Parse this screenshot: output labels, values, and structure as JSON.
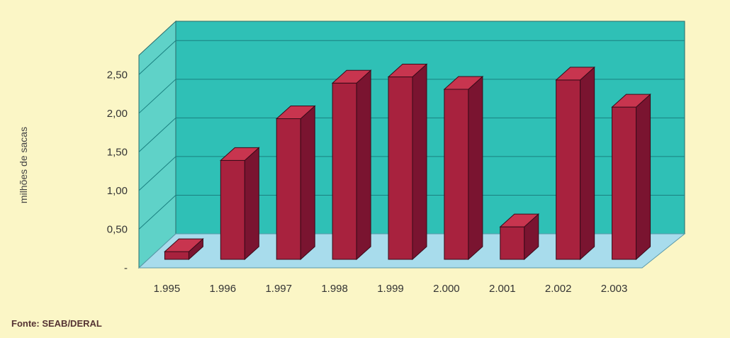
{
  "chart_data": {
    "type": "bar",
    "title": "",
    "xlabel": "",
    "ylabel": "milhões de sacas",
    "categories": [
      "1.995",
      "1.996",
      "1.997",
      "1.998",
      "1.999",
      "2.000",
      "2.001",
      "2.002",
      "2.003"
    ],
    "values": [
      0.1,
      1.28,
      1.82,
      2.28,
      2.36,
      2.2,
      0.42,
      2.32,
      1.97
    ],
    "y_ticks": [
      "-",
      "0,50",
      "1,00",
      "1,50",
      "2,00",
      "2,50"
    ],
    "ylim": [
      0,
      2.75
    ],
    "grid": true,
    "legend": "none"
  },
  "source": "Fonte: SEAB/DERAL",
  "colors": {
    "background": "#fbf6c6",
    "back_wall": "#2fc0b6",
    "side_wall": "#5fd2c8",
    "floor": "#a8dcec",
    "bar_front": "#a8223e",
    "bar_side": "#7a1430",
    "bar_top": "#c8354f",
    "gridline": "#1a8080"
  }
}
